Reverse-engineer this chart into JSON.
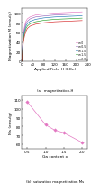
{
  "top": {
    "xlabel": "Applied Field H (kOe)",
    "ylabel": "Magnetization M (emu/g)",
    "xlim": [
      0,
      230
    ],
    "ylim": [
      0,
      110
    ],
    "xticks": [
      0,
      40,
      80,
      120,
      160,
      200,
      240
    ],
    "yticks": [
      0,
      20,
      40,
      60,
      80,
      100
    ],
    "label": "(a)  magnetization-H",
    "curves": [
      {
        "x": [
          0,
          3,
          6,
          10,
          15,
          20,
          30,
          50,
          80,
          120,
          160,
          200,
          220
        ],
        "y": [
          0,
          35,
          58,
          73,
          83,
          88,
          92,
          96,
          98,
          100,
          101,
          102,
          102.5
        ],
        "color": "#e377c2",
        "label": "x=0"
      },
      {
        "x": [
          0,
          3,
          6,
          10,
          15,
          20,
          30,
          50,
          80,
          120,
          160,
          200,
          220
        ],
        "y": [
          0,
          32,
          54,
          68,
          78,
          83,
          88,
          92,
          94,
          96,
          97,
          98,
          98.5
        ],
        "color": "#9467bd",
        "label": "x=0.5"
      },
      {
        "x": [
          0,
          3,
          6,
          10,
          15,
          20,
          30,
          50,
          80,
          120,
          160,
          200,
          220
        ],
        "y": [
          0,
          30,
          50,
          63,
          73,
          78,
          83,
          87,
          90,
          92,
          93,
          94,
          94.5
        ],
        "color": "#1f77b4",
        "label": "x=1.0"
      },
      {
        "x": [
          0,
          3,
          6,
          10,
          15,
          20,
          30,
          50,
          80,
          120,
          160,
          200,
          220
        ],
        "y": [
          0,
          27,
          46,
          58,
          68,
          73,
          78,
          82,
          85,
          87,
          88,
          89,
          89.5
        ],
        "color": "#2ca02c",
        "label": "x=1.5"
      },
      {
        "x": [
          0,
          3,
          6,
          10,
          15,
          20,
          30,
          50,
          80,
          120,
          160,
          200,
          220
        ],
        "y": [
          0,
          24,
          42,
          53,
          62,
          68,
          73,
          77,
          80,
          82,
          83,
          84,
          84.5
        ],
        "color": "#d62728",
        "label": "x=2.0"
      }
    ]
  },
  "bottom": {
    "xlabel": "Ga content x",
    "ylabel": "Ms (emu/g)",
    "xlim": [
      0.35,
      2.15
    ],
    "ylim": [
      55,
      115
    ],
    "xticks": [
      0.5,
      1.0,
      1.5,
      2.0
    ],
    "yticks": [
      60,
      70,
      80,
      90,
      100,
      110
    ],
    "label": "(b)  saturation magnetization Ms",
    "x": [
      0.5,
      1.0,
      1.25,
      1.5,
      2.0
    ],
    "y": [
      108,
      82,
      76,
      73,
      62
    ],
    "color": "#e377c2",
    "marker": "D"
  },
  "bg_color": "#ffffff",
  "label_fontsize": 3.2,
  "tick_fontsize": 3.0
}
